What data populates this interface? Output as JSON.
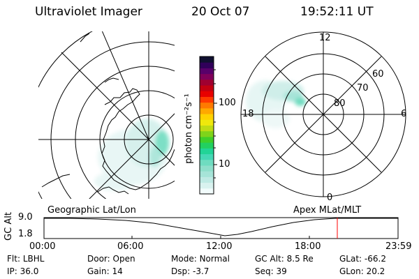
{
  "header": {
    "instrument": "Ultraviolet Imager",
    "date": "20 Oct 07",
    "time": "19:52:11 UT"
  },
  "colorbar": {
    "unit_label": "photon cm⁻²s⁻¹",
    "ticks": [
      "100",
      "10"
    ],
    "colors": [
      "#f2fcfc",
      "#d9f2ef",
      "#bfeae4",
      "#a6e4d8",
      "#8fdfcb",
      "#6fdcc0",
      "#45d8b5",
      "#22d497",
      "#22d060",
      "#3fcf2a",
      "#7fd41a",
      "#bfdc14",
      "#efe80c",
      "#ffd200",
      "#ffa800",
      "#ff7a00",
      "#ff3a00",
      "#e80000",
      "#c40010",
      "#a00030",
      "#80005a",
      "#58006a",
      "#30005a",
      "#101030"
    ]
  },
  "left_map": {
    "label": "Geographic Lat/Lon"
  },
  "right_map": {
    "label": "Apex MLat/MLT",
    "mlt_labels": [
      "12",
      "18",
      "6",
      "0"
    ],
    "mlat_labels": [
      "60",
      "70",
      "80"
    ]
  },
  "altitude_plot": {
    "ylabel": "GC Alt",
    "yticks": [
      "9.0",
      "1.8"
    ],
    "xticks": [
      "00:00",
      "06:00",
      "12:00",
      "18:00",
      "23:59"
    ],
    "current_time_marker": "19:52",
    "marker_color": "#ff0000"
  },
  "status": {
    "row1": [
      {
        "label": "Flt:",
        "value": "LBHL"
      },
      {
        "label": "Door:",
        "value": "Open"
      },
      {
        "label": "Mode:",
        "value": "Normal"
      },
      {
        "label": "GC Alt:",
        "value": "8.5 Re"
      },
      {
        "label": "GLat:",
        "value": "-66.2"
      }
    ],
    "row2": [
      {
        "label": "IP:",
        "value": "36.0"
      },
      {
        "label": "Gain:",
        "value": "14"
      },
      {
        "label": "Dsp:",
        "value": "-3.7"
      },
      {
        "label": "Seq:",
        "value": "39"
      },
      {
        "label": "GLon:",
        "value": "20.2"
      }
    ]
  }
}
